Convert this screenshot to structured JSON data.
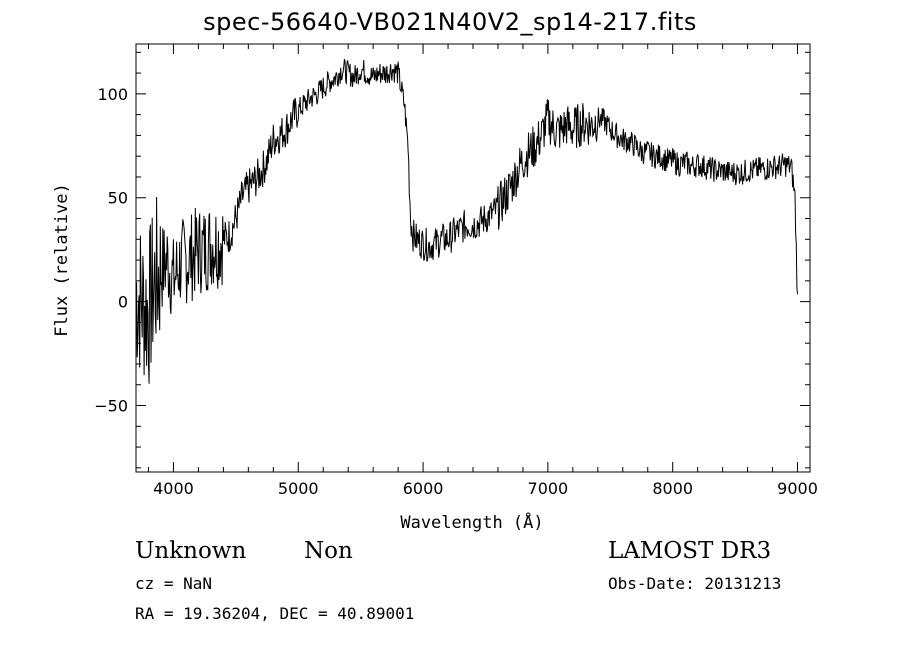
{
  "title": "spec-56640-VB021N40V2_sp14-217.fits",
  "footer": {
    "object_class": "Unknown",
    "object_subclass": "Non",
    "survey": "LAMOST DR3",
    "redshift": "cz = NaN",
    "obs_date": "Obs-Date: 20131213",
    "coordinates": "RA =  19.36204, DEC =  40.89001"
  },
  "chart_data": {
    "type": "line",
    "title": "spec-56640-VB021N40V2_sp14-217.fits",
    "xlabel": "Wavelength (Å)",
    "ylabel": "Flux (relative)",
    "xlim": [
      3700,
      9100
    ],
    "ylim": [
      -82,
      124
    ],
    "xticks": [
      4000,
      5000,
      6000,
      7000,
      8000,
      9000
    ],
    "yticks": [
      -50,
      0,
      50,
      100
    ],
    "grid": false,
    "series": [
      {
        "x": [
          3700,
          3750,
          3800,
          3850,
          3900,
          3950,
          4000,
          4050,
          4100,
          4150,
          4200,
          4250,
          4300,
          4350,
          4400,
          4450,
          4500,
          4550,
          4600,
          4650,
          4700,
          4750,
          4800,
          4850,
          4900,
          4950,
          5000,
          5050,
          5100,
          5150,
          5200,
          5250,
          5300,
          5350,
          5400,
          5450,
          5500,
          5550,
          5600,
          5650,
          5700,
          5750,
          5800,
          5850,
          5880,
          5900,
          5920,
          5950,
          6000,
          6050,
          6100,
          6150,
          6200,
          6250,
          6300,
          6350,
          6400,
          6450,
          6500,
          6550,
          6600,
          6650,
          6700,
          6750,
          6800,
          6850,
          6900,
          6950,
          7000,
          7050,
          7100,
          7150,
          7200,
          7250,
          7300,
          7350,
          7400,
          7450,
          7500,
          7550,
          7600,
          7650,
          7700,
          7750,
          7800,
          7850,
          7900,
          7950,
          8000,
          8050,
          8100,
          8150,
          8200,
          8250,
          8300,
          8350,
          8400,
          8450,
          8500,
          8550,
          8600,
          8650,
          8700,
          8750,
          8800,
          8850,
          8900,
          8950,
          8980,
          9000
        ],
        "values": [
          5,
          0,
          -5,
          10,
          15,
          20,
          10,
          18,
          20,
          22,
          25,
          25,
          28,
          28,
          30,
          32,
          40,
          50,
          55,
          58,
          62,
          68,
          78,
          80,
          83,
          88,
          92,
          95,
          98,
          100,
          103,
          106,
          108,
          112,
          110,
          108,
          112,
          110,
          108,
          110,
          110,
          112,
          110,
          95,
          75,
          40,
          32,
          30,
          28,
          27,
          28,
          30,
          30,
          33,
          35,
          37,
          37,
          38,
          40,
          42,
          45,
          50,
          55,
          62,
          68,
          72,
          75,
          80,
          88,
          83,
          82,
          85,
          83,
          85,
          86,
          85,
          88,
          87,
          83,
          80,
          78,
          77,
          75,
          72,
          72,
          70,
          70,
          68,
          68,
          66,
          67,
          65,
          66,
          65,
          64,
          63,
          63,
          62,
          62,
          62,
          63,
          63,
          64,
          64,
          65,
          65,
          66,
          65,
          50,
          0
        ]
      }
    ]
  }
}
